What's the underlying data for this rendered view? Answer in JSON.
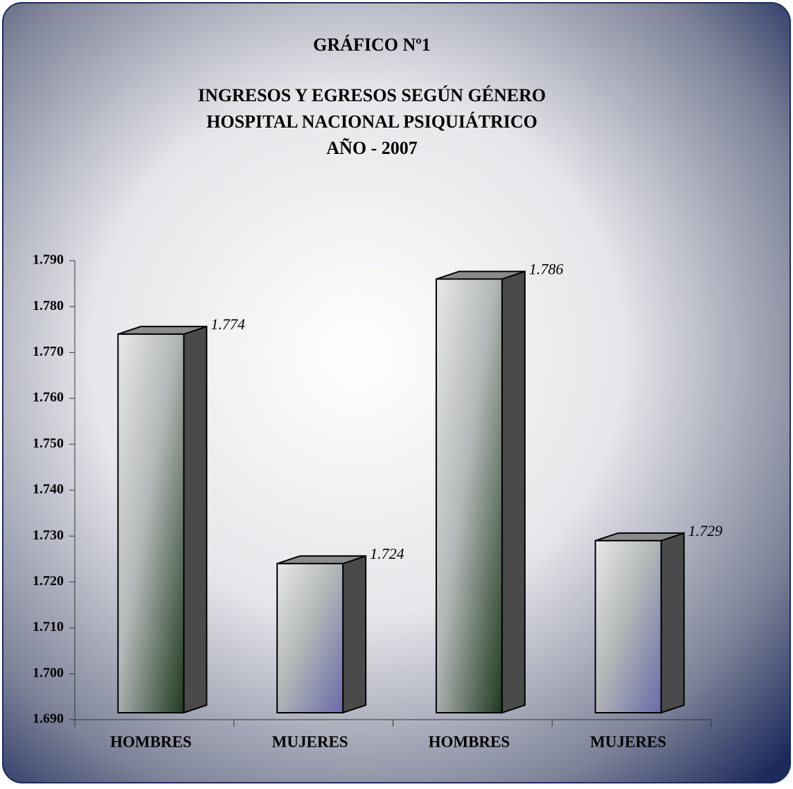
{
  "chart_data": {
    "type": "bar3d",
    "title": "GRÁFICO Nº1",
    "subtitle": [
      "INGRESOS Y EGRESOS SEGÚN GÉNERO",
      "HOSPITAL NACIONAL PSIQUIÁTRICO",
      "AÑO - 2007"
    ],
    "categories": [
      "HOMBRES",
      "MUJERES",
      "HOMBRES",
      "MUJERES"
    ],
    "values": [
      1774,
      1724,
      1786,
      1729
    ],
    "value_labels": [
      "1.774",
      "1.724",
      "1.786",
      "1.729"
    ],
    "colors": [
      "#1f3a1f",
      "#6a6aa8",
      "#1f3a1f",
      "#6a6aa8"
    ],
    "ylim": [
      1690,
      1790
    ],
    "yticks": [
      {
        "value": 1690,
        "label": "1.690"
      },
      {
        "value": 1700,
        "label": "1.700"
      },
      {
        "value": 1710,
        "label": "1.710"
      },
      {
        "value": 1720,
        "label": "1.720"
      },
      {
        "value": 1730,
        "label": "1.730"
      },
      {
        "value": 1740,
        "label": "1.740"
      },
      {
        "value": 1750,
        "label": "1.750"
      },
      {
        "value": 1760,
        "label": "1.760"
      },
      {
        "value": 1770,
        "label": "1.770"
      },
      {
        "value": 1780,
        "label": "1.780"
      },
      {
        "value": 1790,
        "label": "1.790"
      }
    ]
  }
}
